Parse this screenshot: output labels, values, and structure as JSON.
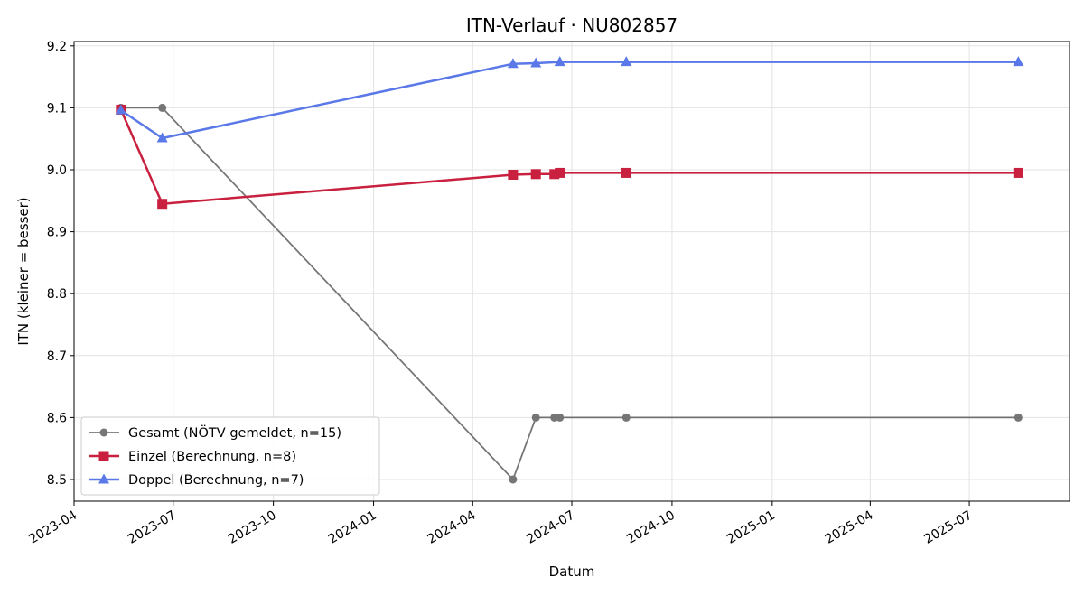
{
  "chart_data": {
    "type": "line",
    "title": "ITN-Verlauf · NU802857",
    "xlabel": "Datum",
    "ylabel": "ITN  (kleiner = besser)",
    "xlim": [
      "2023-04-01",
      "2025-10-01"
    ],
    "ylim": [
      8.465,
      9.207
    ],
    "x_ticks": [
      "2023-04",
      "2023-07",
      "2023-10",
      "2024-01",
      "2024-04",
      "2024-07",
      "2024-10",
      "2025-01",
      "2025-04",
      "2025-07"
    ],
    "y_ticks": [
      8.5,
      8.6,
      8.7,
      8.8,
      8.9,
      9.0,
      9.1,
      9.2
    ],
    "grid": true,
    "legend_position": "lower-left",
    "series": [
      {
        "name": "Gesamt (NÖTV gemeldet, n=15)",
        "color": "#555555",
        "marker": "circle",
        "points": [
          {
            "x": "2023-05-14",
            "y": 9.1
          },
          {
            "x": "2023-06-21",
            "y": 9.1
          },
          {
            "x": "2024-05-08",
            "y": 8.5
          },
          {
            "x": "2024-05-29",
            "y": 8.6
          },
          {
            "x": "2024-06-15",
            "y": 8.6
          },
          {
            "x": "2024-06-20",
            "y": 8.6
          },
          {
            "x": "2024-08-20",
            "y": 8.6
          },
          {
            "x": "2025-08-15",
            "y": 8.6
          }
        ]
      },
      {
        "name": "Einzel (Berechnung, n=8)",
        "color": "#c8203e",
        "marker": "square",
        "points": [
          {
            "x": "2023-05-14",
            "y": 9.097
          },
          {
            "x": "2023-06-21",
            "y": 8.945
          },
          {
            "x": "2024-05-08",
            "y": 8.992
          },
          {
            "x": "2024-05-29",
            "y": 8.993
          },
          {
            "x": "2024-06-15",
            "y": 8.993
          },
          {
            "x": "2024-06-20",
            "y": 8.995
          },
          {
            "x": "2024-08-20",
            "y": 8.995
          },
          {
            "x": "2025-08-15",
            "y": 8.995
          }
        ]
      },
      {
        "name": "Doppel (Berechnung, n=7)",
        "color": "#5a78e8",
        "marker": "triangle",
        "points": [
          {
            "x": "2023-05-14",
            "y": 9.096
          },
          {
            "x": "2023-06-21",
            "y": 9.051
          },
          {
            "x": "2024-05-08",
            "y": 9.171
          },
          {
            "x": "2024-05-29",
            "y": 9.172
          },
          {
            "x": "2024-06-20",
            "y": 9.174
          },
          {
            "x": "2024-08-20",
            "y": 9.174
          },
          {
            "x": "2025-08-15",
            "y": 9.174
          }
        ]
      }
    ]
  }
}
